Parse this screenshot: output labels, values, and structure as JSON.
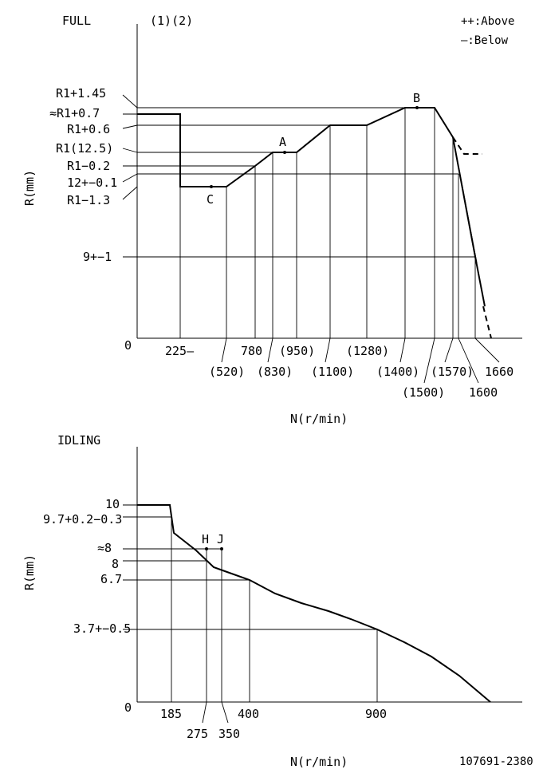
{
  "full": {
    "title": "FULL",
    "note": "(1)(2)",
    "legend": [
      "++:Above",
      "—:Below"
    ],
    "y_label": "R(mm)",
    "x_label": "N(r/min)",
    "zero_label": "0",
    "y_ticks": [
      "R1+1.45",
      "≈R1+0.7",
      "R1+0.6",
      "R1(12.5)",
      "R1−0.2",
      "12+−0.1",
      "R1−1.3",
      "9+−1"
    ],
    "x_ticks": [
      "225—",
      "(520)",
      "780",
      "(830)",
      "(950)",
      "(1100)",
      "(1280)",
      "(1400)",
      "(1500)",
      "(1570)",
      "1600",
      "1660"
    ],
    "points": [
      "A",
      "B",
      "C"
    ]
  },
  "idling": {
    "title": "IDLING",
    "y_label": "R(mm)",
    "x_label": "N(r/min)",
    "zero_label": "0",
    "y_ticks": [
      "10",
      "9.7+0.2−0.3",
      "≈8",
      "8",
      "6.7",
      "3.7+−0.5"
    ],
    "x_ticks": [
      "185",
      "275",
      "350",
      "400",
      "900"
    ],
    "points": [
      "H",
      "J"
    ]
  },
  "doc_id": "107691-2380"
}
